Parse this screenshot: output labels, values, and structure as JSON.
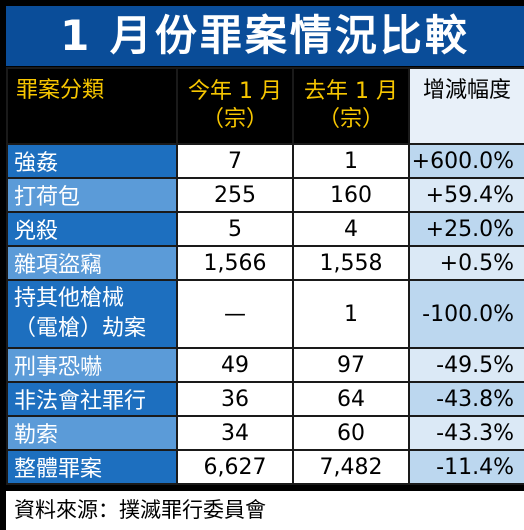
{
  "title": "1 月份罪案情況比較",
  "header": {
    "category": "罪案分類",
    "this_year_line1": "今年 1 月",
    "this_year_line2": "（宗）",
    "last_year_line1": "去年 1 月",
    "last_year_line2": "（宗）",
    "change": "增減幅度"
  },
  "rows": [
    {
      "category": "強姦",
      "this_year": "7",
      "last_year": "1",
      "change": "+600.0%"
    },
    {
      "category": "打荷包",
      "this_year": "255",
      "last_year": "160",
      "change": "+59.4%"
    },
    {
      "category": "兇殺",
      "this_year": "5",
      "last_year": "4",
      "change": "+25.0%"
    },
    {
      "category": "雜項盜竊",
      "this_year": "1,566",
      "last_year": "1,558",
      "change": "+0.5%"
    },
    {
      "category_line1": "持其他槍械",
      "category_line2": "（電槍）劫案",
      "this_year": "—",
      "last_year": "1",
      "change": "-100.0%"
    },
    {
      "category": "刑事恐嚇",
      "this_year": "49",
      "last_year": "97",
      "change": "-49.5%"
    },
    {
      "category": "非法會社罪行",
      "this_year": "36",
      "last_year": "64",
      "change": "-43.8%"
    },
    {
      "category": "勒索",
      "this_year": "34",
      "last_year": "60",
      "change": "-43.3%"
    },
    {
      "category": "整體罪案",
      "this_year": "6,627",
      "last_year": "7,482",
      "change": "-11.4%"
    }
  ],
  "source": "資料來源：撲滅罪行委員會",
  "colors": {
    "title_bg": "#0a4d99",
    "header_text": "#f7c600",
    "label_dark": "#1d6fbf",
    "label_light": "#5b9bd8"
  }
}
